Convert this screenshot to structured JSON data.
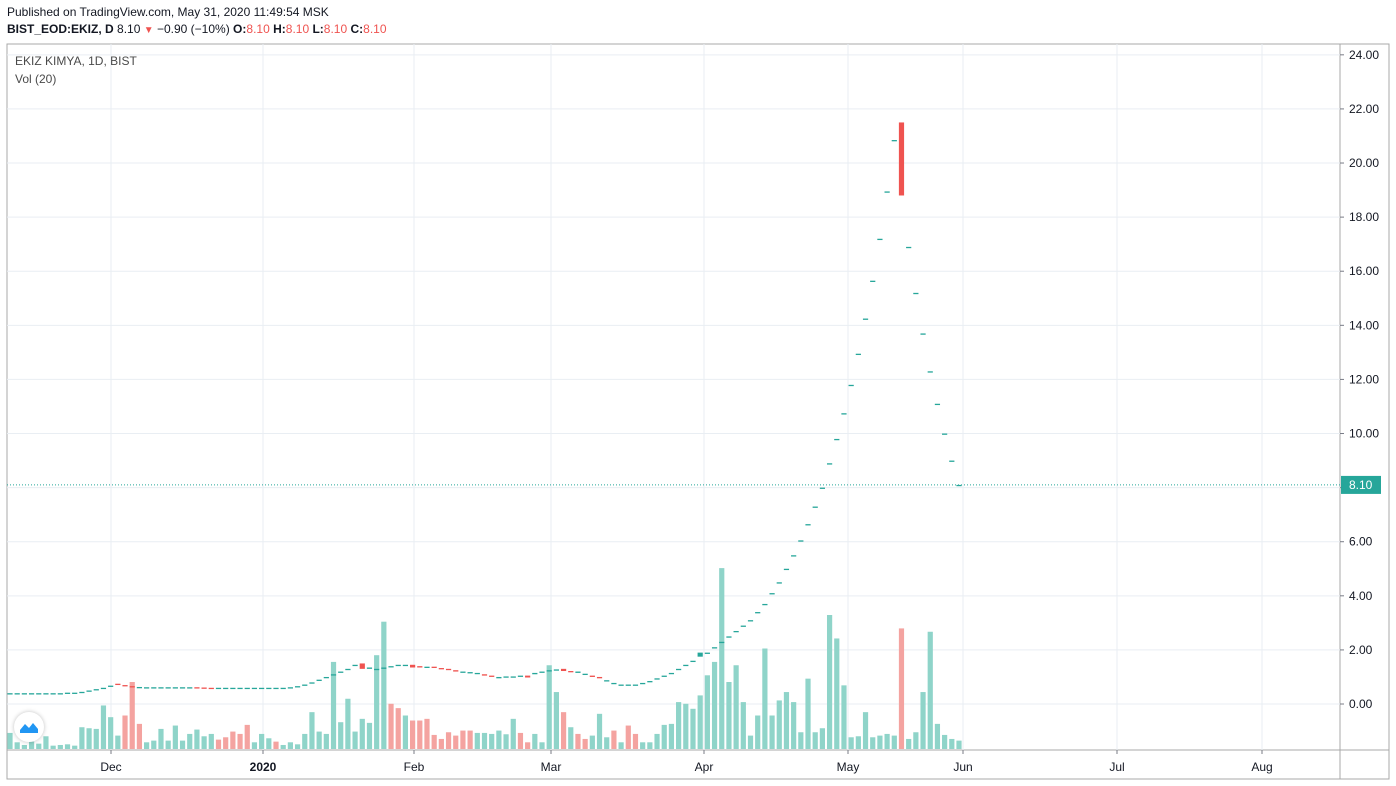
{
  "header": {
    "published": "Published on TradingView.com, May 31, 2020 11:49:54 MSK",
    "symbol": "BIST_EOD:EKIZ, D",
    "last": "8.10",
    "change": "−0.90 (−10%)",
    "o_label": "O:",
    "o_val": "8.10",
    "h_label": "H:",
    "h_val": "8.10",
    "l_label": "L:",
    "l_val": "8.10",
    "c_label": "C:",
    "c_val": "8.10"
  },
  "pane": {
    "title": "EKIZ KIMYA, 1D, BIST",
    "indicator": "Vol (20)"
  },
  "colors": {
    "up": "#26a69a",
    "down": "#ef5350",
    "vol_up": "#8fd4c9",
    "vol_down": "#f4a3a0",
    "grid": "#e9eef3",
    "last_line": "#26a69a",
    "logo": "#2196f3"
  },
  "chart_data": {
    "type": "candlestick",
    "y_axis": {
      "min": -1.7,
      "max": 24.4,
      "ticks": [
        "24.00",
        "22.00",
        "20.00",
        "18.00",
        "16.00",
        "14.00",
        "12.00",
        "10.00",
        "8.00",
        "6.00",
        "4.00",
        "2.00",
        "0.00"
      ]
    },
    "x_axis": {
      "ticks": [
        "Dec",
        "2020",
        "Feb",
        "Mar",
        "Apr",
        "May",
        "Jun",
        "Jul",
        "Aug"
      ]
    },
    "last_price": "8.10",
    "candles": [
      [
        0.4,
        0.4
      ],
      [
        0.4,
        0.4
      ],
      [
        0.4,
        0.4
      ],
      [
        0.4,
        0.4
      ],
      [
        0.4,
        0.4
      ],
      [
        0.4,
        0.4
      ],
      [
        0.4,
        0.4
      ],
      [
        0.4,
        0.4
      ],
      [
        0.42,
        0.42
      ],
      [
        0.42,
        0.42
      ],
      [
        0.45,
        0.45
      ],
      [
        0.5,
        0.5
      ],
      [
        0.55,
        0.55
      ],
      [
        0.6,
        0.6
      ],
      [
        0.68,
        0.68
      ],
      [
        0.75,
        0.72
      ],
      [
        0.7,
        0.66
      ],
      [
        0.66,
        0.63
      ],
      [
        0.63,
        0.63
      ],
      [
        0.62,
        0.62
      ],
      [
        0.62,
        0.62
      ],
      [
        0.62,
        0.62
      ],
      [
        0.62,
        0.62
      ],
      [
        0.62,
        0.62
      ],
      [
        0.62,
        0.62
      ],
      [
        0.62,
        0.62
      ],
      [
        0.62,
        0.61
      ],
      [
        0.61,
        0.6
      ],
      [
        0.6,
        0.59
      ],
      [
        0.6,
        0.6
      ],
      [
        0.6,
        0.6
      ],
      [
        0.6,
        0.6
      ],
      [
        0.6,
        0.6
      ],
      [
        0.6,
        0.6
      ],
      [
        0.6,
        0.6
      ],
      [
        0.6,
        0.6
      ],
      [
        0.6,
        0.6
      ],
      [
        0.6,
        0.6
      ],
      [
        0.6,
        0.6
      ],
      [
        0.62,
        0.62
      ],
      [
        0.66,
        0.66
      ],
      [
        0.72,
        0.72
      ],
      [
        0.8,
        0.8
      ],
      [
        0.9,
        0.9
      ],
      [
        1.0,
        1.0
      ],
      [
        1.1,
        1.1
      ],
      [
        1.2,
        1.2
      ],
      [
        1.3,
        1.3
      ],
      [
        1.45,
        1.45
      ],
      [
        1.5,
        1.3
      ],
      [
        1.3,
        1.35
      ],
      [
        1.3,
        1.3
      ],
      [
        1.3,
        1.35
      ],
      [
        1.4,
        1.4
      ],
      [
        1.45,
        1.45
      ],
      [
        1.45,
        1.45
      ],
      [
        1.45,
        1.35
      ],
      [
        1.4,
        1.35
      ],
      [
        1.38,
        1.38
      ],
      [
        1.38,
        1.35
      ],
      [
        1.33,
        1.3
      ],
      [
        1.3,
        1.28
      ],
      [
        1.25,
        1.2
      ],
      [
        1.2,
        1.2
      ],
      [
        1.18,
        1.18
      ],
      [
        1.15,
        1.15
      ],
      [
        1.1,
        1.05
      ],
      [
        1.05,
        1.02
      ],
      [
        0.95,
        1.0
      ],
      [
        1.02,
        1.02
      ],
      [
        1.02,
        1.02
      ],
      [
        1.05,
        1.05
      ],
      [
        1.05,
        0.98
      ],
      [
        1.1,
        1.15
      ],
      [
        1.2,
        1.2
      ],
      [
        1.25,
        1.25
      ],
      [
        1.28,
        1.28
      ],
      [
        1.3,
        1.22
      ],
      [
        1.22,
        1.2
      ],
      [
        1.15,
        1.2
      ],
      [
        1.12,
        1.12
      ],
      [
        1.05,
        1.0
      ],
      [
        1.0,
        0.95
      ],
      [
        0.88,
        0.88
      ],
      [
        0.78,
        0.78
      ],
      [
        0.72,
        0.72
      ],
      [
        0.68,
        0.72
      ],
      [
        0.72,
        0.72
      ],
      [
        0.78,
        0.78
      ],
      [
        0.85,
        0.85
      ],
      [
        0.95,
        0.95
      ],
      [
        1.05,
        1.05
      ],
      [
        1.15,
        1.15
      ],
      [
        1.3,
        1.3
      ],
      [
        1.45,
        1.45
      ],
      [
        1.6,
        1.6
      ],
      [
        1.75,
        1.9
      ],
      [
        1.9,
        1.9
      ],
      [
        2.1,
        2.1
      ],
      [
        2.3,
        2.3
      ],
      [
        2.5,
        2.5
      ],
      [
        2.7,
        2.7
      ],
      [
        2.9,
        2.9
      ],
      [
        3.1,
        3.1
      ],
      [
        3.4,
        3.4
      ],
      [
        3.7,
        3.7
      ],
      [
        4.1,
        4.1
      ],
      [
        4.5,
        4.5
      ],
      [
        5.0,
        5.0
      ],
      [
        5.5,
        5.5
      ],
      [
        6.05,
        6.05
      ],
      [
        6.65,
        6.65
      ],
      [
        7.3,
        7.3
      ],
      [
        8.0,
        8.0
      ],
      [
        8.9,
        8.9
      ],
      [
        9.8,
        9.8
      ],
      [
        10.75,
        10.75
      ],
      [
        11.8,
        11.8
      ],
      [
        12.95,
        12.95
      ],
      [
        14.25,
        14.25
      ],
      [
        15.65,
        15.65
      ],
      [
        17.2,
        17.2
      ],
      [
        18.95,
        18.95
      ],
      [
        20.85,
        20.85
      ],
      [
        21.5,
        18.8
      ],
      [
        16.9,
        16.9
      ],
      [
        15.2,
        15.2
      ],
      [
        13.7,
        13.7
      ],
      [
        12.3,
        12.3
      ],
      [
        11.1,
        11.1
      ],
      [
        10.0,
        10.0
      ],
      [
        9.0,
        9.0
      ],
      [
        8.1,
        8.1
      ]
    ],
    "volume": [
      [
        0.48,
        1
      ],
      [
        0.2,
        1
      ],
      [
        0.12,
        1
      ],
      [
        0.22,
        1
      ],
      [
        0.16,
        1
      ],
      [
        0.38,
        1
      ],
      [
        0.1,
        1
      ],
      [
        0.12,
        1
      ],
      [
        0.14,
        1
      ],
      [
        0.1,
        1
      ],
      [
        0.65,
        1
      ],
      [
        0.62,
        1
      ],
      [
        0.6,
        1
      ],
      [
        1.3,
        1
      ],
      [
        0.95,
        1
      ],
      [
        0.4,
        1
      ],
      [
        1.0,
        0
      ],
      [
        2.0,
        0
      ],
      [
        0.75,
        0
      ],
      [
        0.2,
        1
      ],
      [
        0.25,
        1
      ],
      [
        0.6,
        1
      ],
      [
        0.25,
        1
      ],
      [
        0.7,
        1
      ],
      [
        0.25,
        1
      ],
      [
        0.45,
        1
      ],
      [
        0.58,
        1
      ],
      [
        0.38,
        1
      ],
      [
        0.45,
        1
      ],
      [
        0.28,
        0
      ],
      [
        0.35,
        0
      ],
      [
        0.52,
        0
      ],
      [
        0.45,
        0
      ],
      [
        0.72,
        0
      ],
      [
        0.2,
        1
      ],
      [
        0.45,
        1
      ],
      [
        0.32,
        1
      ],
      [
        0.22,
        0
      ],
      [
        0.12,
        1
      ],
      [
        0.2,
        1
      ],
      [
        0.14,
        1
      ],
      [
        0.45,
        1
      ],
      [
        1.1,
        1
      ],
      [
        0.52,
        1
      ],
      [
        0.45,
        1
      ],
      [
        2.6,
        1
      ],
      [
        0.8,
        1
      ],
      [
        1.5,
        1
      ],
      [
        0.52,
        1
      ],
      [
        0.9,
        1
      ],
      [
        0.78,
        1
      ],
      [
        2.8,
        1
      ],
      [
        3.8,
        1
      ],
      [
        1.35,
        0
      ],
      [
        1.22,
        0
      ],
      [
        1.0,
        1
      ],
      [
        0.85,
        0
      ],
      [
        0.85,
        0
      ],
      [
        0.9,
        0
      ],
      [
        0.42,
        0
      ],
      [
        0.3,
        0
      ],
      [
        0.5,
        0
      ],
      [
        0.4,
        0
      ],
      [
        0.55,
        0
      ],
      [
        0.55,
        0
      ],
      [
        0.48,
        1
      ],
      [
        0.48,
        1
      ],
      [
        0.45,
        1
      ],
      [
        0.55,
        1
      ],
      [
        0.44,
        1
      ],
      [
        0.9,
        1
      ],
      [
        0.48,
        0
      ],
      [
        0.2,
        0
      ],
      [
        0.45,
        1
      ],
      [
        0.2,
        1
      ],
      [
        2.5,
        1
      ],
      [
        1.7,
        1
      ],
      [
        1.1,
        0
      ],
      [
        0.65,
        1
      ],
      [
        0.45,
        0
      ],
      [
        0.3,
        0
      ],
      [
        0.4,
        1
      ],
      [
        1.05,
        1
      ],
      [
        0.35,
        1
      ],
      [
        0.55,
        0
      ],
      [
        0.2,
        1
      ],
      [
        0.7,
        0
      ],
      [
        0.45,
        0
      ],
      [
        0.2,
        1
      ],
      [
        0.2,
        1
      ],
      [
        0.45,
        1
      ],
      [
        0.72,
        1
      ],
      [
        0.75,
        1
      ],
      [
        1.4,
        1
      ],
      [
        1.35,
        1
      ],
      [
        1.2,
        1
      ],
      [
        1.6,
        1
      ],
      [
        2.2,
        1
      ],
      [
        2.6,
        1
      ],
      [
        5.4,
        1
      ],
      [
        2.0,
        1
      ],
      [
        2.5,
        1
      ],
      [
        1.4,
        1
      ],
      [
        0.4,
        1
      ],
      [
        1.0,
        1
      ],
      [
        3.0,
        1
      ],
      [
        1.0,
        1
      ],
      [
        1.45,
        1
      ],
      [
        1.7,
        1
      ],
      [
        1.4,
        1
      ],
      [
        0.5,
        1
      ],
      [
        2.1,
        1
      ],
      [
        0.5,
        1
      ],
      [
        0.62,
        1
      ],
      [
        4.0,
        1
      ],
      [
        3.3,
        1
      ],
      [
        1.9,
        1
      ],
      [
        0.35,
        1
      ],
      [
        0.38,
        1
      ],
      [
        1.1,
        1
      ],
      [
        0.35,
        1
      ],
      [
        0.4,
        1
      ],
      [
        0.45,
        1
      ],
      [
        0.4,
        1
      ],
      [
        3.6,
        0
      ],
      [
        0.3,
        1
      ],
      [
        0.5,
        1
      ],
      [
        1.7,
        1
      ],
      [
        3.5,
        1
      ],
      [
        0.75,
        1
      ],
      [
        0.42,
        1
      ],
      [
        0.3,
        1
      ],
      [
        0.25,
        1
      ]
    ]
  }
}
